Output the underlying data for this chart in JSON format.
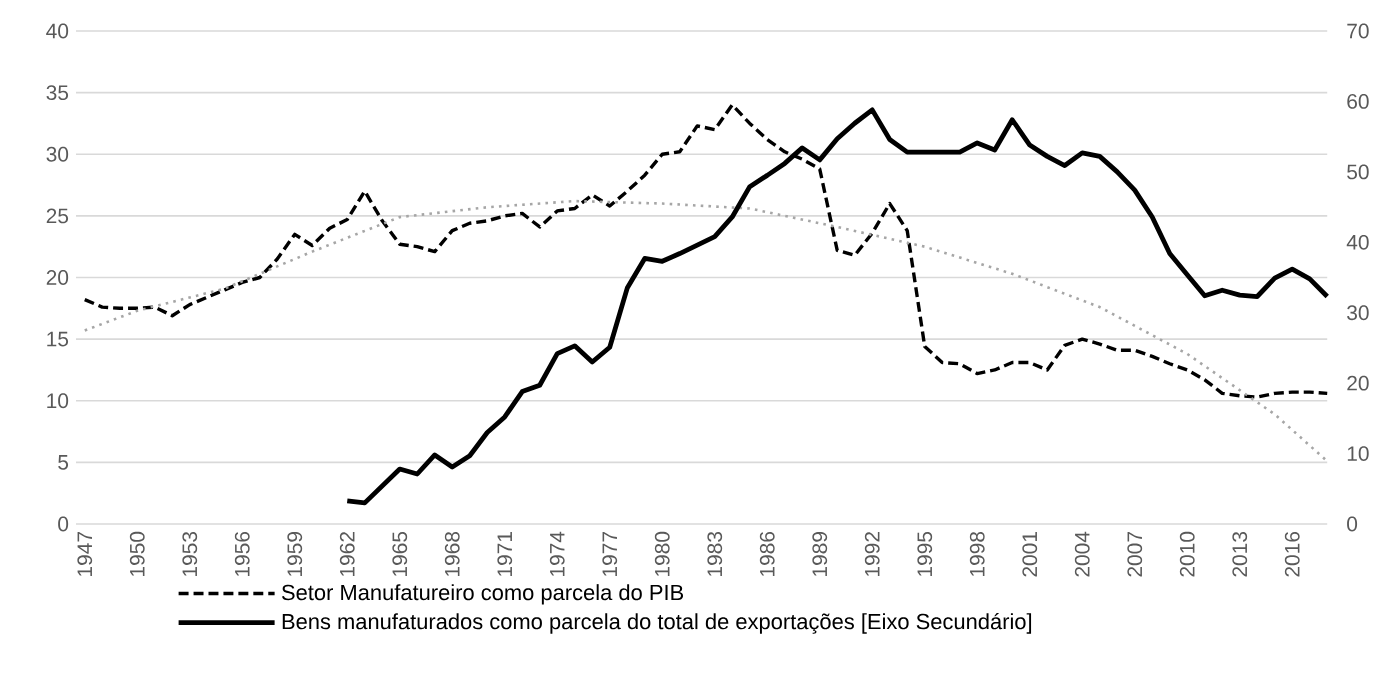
{
  "chart_data": {
    "type": "line",
    "x": [
      1947,
      1948,
      1949,
      1950,
      1951,
      1952,
      1953,
      1954,
      1955,
      1956,
      1957,
      1958,
      1959,
      1960,
      1961,
      1962,
      1963,
      1964,
      1965,
      1966,
      1967,
      1968,
      1969,
      1970,
      1971,
      1972,
      1973,
      1974,
      1975,
      1976,
      1977,
      1978,
      1979,
      1980,
      1981,
      1982,
      1983,
      1984,
      1985,
      1986,
      1987,
      1988,
      1989,
      1990,
      1991,
      1992,
      1993,
      1994,
      1995,
      1996,
      1997,
      1998,
      1999,
      2000,
      2001,
      2002,
      2003,
      2004,
      2005,
      2006,
      2007,
      2008,
      2009,
      2010,
      2011,
      2012,
      2013,
      2014,
      2015,
      2016,
      2017,
      2018
    ],
    "series": [
      {
        "name": "Setor Manufatureiro como parcela do PIB",
        "color": "#000000",
        "line_style": "dashed",
        "values": [
          18.2,
          17.6,
          17.5,
          17.5,
          17.6,
          16.9,
          17.8,
          18.4,
          19.0,
          19.6,
          20.0,
          21.5,
          23.5,
          22.6,
          24.0,
          24.7,
          27.0,
          24.6,
          22.7,
          22.5,
          22.1,
          23.8,
          24.4,
          24.6,
          25.0,
          25.2,
          24.1,
          25.4,
          25.6,
          26.7,
          25.8,
          27.0,
          28.3,
          30.0,
          30.2,
          32.3,
          32.0,
          34.0,
          32.5,
          31.2,
          30.2,
          29.6,
          28.8,
          22.2,
          21.8,
          23.6,
          26.0,
          23.8,
          14.4,
          13.1,
          13.0,
          12.2,
          12.5,
          13.1,
          13.1,
          12.5,
          14.5,
          15.0,
          14.6,
          14.1,
          14.1,
          13.6,
          13.0,
          12.5,
          11.7,
          10.6,
          10.4,
          10.3,
          10.6,
          10.7,
          10.7,
          10.6
        ]
      },
      {
        "name": "Bens manufaturados como parcela do total de exportações [Eixo Secundário]",
        "color": "#000000",
        "line_style": "solid",
        "axis": "y2",
        "values": [
          null,
          null,
          null,
          null,
          null,
          null,
          null,
          null,
          null,
          null,
          null,
          null,
          null,
          null,
          null,
          3.3,
          3.0,
          5.4,
          7.8,
          7.1,
          9.8,
          8.1,
          9.7,
          13.0,
          15.2,
          18.8,
          19.7,
          24.2,
          25.3,
          23.0,
          25.1,
          33.5,
          37.7,
          37.3,
          38.4,
          39.6,
          40.8,
          43.6,
          47.9,
          49.5,
          51.2,
          53.4,
          51.7,
          54.7,
          56.9,
          58.8,
          54.6,
          52.8,
          52.8,
          52.8,
          52.8,
          54.1,
          53.1,
          57.4,
          53.8,
          52.2,
          50.9,
          52.7,
          52.2,
          50.0,
          47.4,
          43.6,
          38.4,
          35.4,
          32.4,
          33.2,
          32.5,
          32.3,
          34.9,
          36.2,
          34.8,
          32.3
        ]
      },
      {
        "color": "#a6a6a6",
        "line_style": "dotted",
        "x": [
          1947,
          1950,
          1955,
          1960,
          1965,
          1970,
          1975,
          1980,
          1985,
          1990,
          1995,
          2000,
          2005,
          2010,
          2015,
          2018
        ],
        "values": [
          15.7,
          17.3,
          19.1,
          22.1,
          24.9,
          25.7,
          26.2,
          26.0,
          25.6,
          24.1,
          22.5,
          20.3,
          17.6,
          13.8,
          8.9,
          5.1
        ]
      }
    ],
    "xlim": [
      1946.5,
      2018
    ],
    "xticks": [
      1947,
      1950,
      1953,
      1956,
      1959,
      1962,
      1965,
      1968,
      1971,
      1974,
      1977,
      1980,
      1983,
      1986,
      1989,
      1992,
      1995,
      1998,
      2001,
      2004,
      2007,
      2010,
      2013,
      2016
    ],
    "ylim": [
      0,
      40
    ],
    "yticks": [
      0,
      5,
      10,
      15,
      20,
      25,
      30,
      35,
      40
    ],
    "y2lim": [
      0,
      70
    ],
    "y2ticks": [
      0,
      10,
      20,
      30,
      40,
      50,
      60,
      70
    ],
    "grid": "y",
    "legend": "bottom",
    "marker": "none"
  }
}
